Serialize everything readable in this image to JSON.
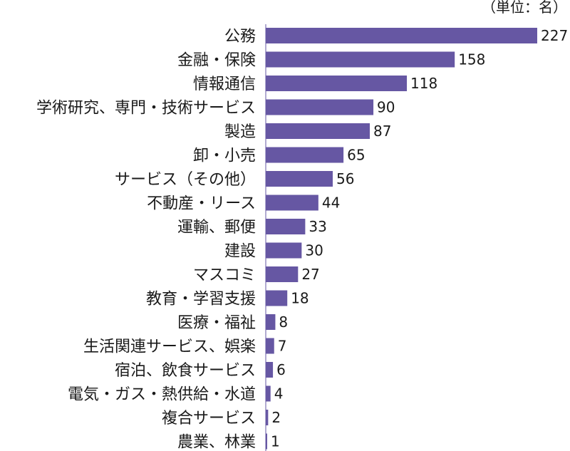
{
  "chart_data": {
    "type": "bar",
    "orientation": "horizontal",
    "unit_note": "（単位：名）",
    "bar_color": "#6657a3",
    "categories": [
      "公務",
      "金融・保険",
      "情報通信",
      "学術研究、専門・技術サービス",
      "製造",
      "卸・小売",
      "サービス（その他）",
      "不動産・リース",
      "運輸、郵便",
      "建設",
      "マスコミ",
      "教育・学習支援",
      "医療・福祉",
      "生活関連サービス、娯楽",
      "宿泊、飲食サービス",
      "電気・ガス・熱供給・水道",
      "複合サービス",
      "農業、林業"
    ],
    "values": [
      227,
      158,
      118,
      90,
      87,
      65,
      56,
      44,
      33,
      30,
      27,
      18,
      8,
      7,
      6,
      4,
      2,
      1
    ],
    "xlim": [
      0,
      227
    ],
    "grid": false,
    "legend": "none"
  }
}
